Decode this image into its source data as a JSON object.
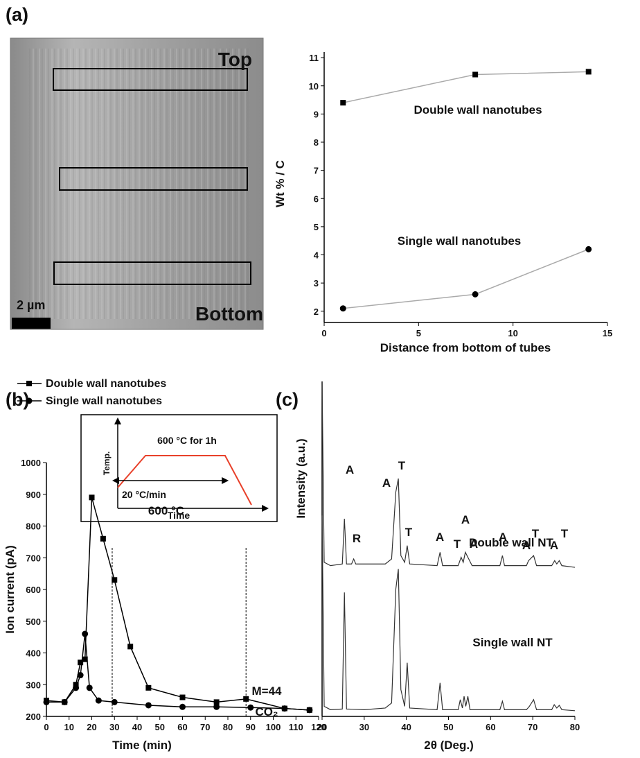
{
  "image": {
    "panel": "(a)",
    "top": "Top",
    "bottom": "Bottom",
    "scale": "2 µm"
  },
  "chart_data": [
    {
      "type": "line",
      "y_label": "Wt % / C",
      "x_label": "Distance from bottom of tubes",
      "xlim": [
        0,
        15
      ],
      "xticks": [
        0,
        5,
        10,
        15
      ],
      "ylim": [
        1.6,
        11.2
      ],
      "yticks": [
        2,
        3,
        4,
        5,
        6,
        7,
        8,
        9,
        10,
        11
      ],
      "series": [
        {
          "name": "Double wall nanotubes",
          "color": "#000000",
          "line_color": "#aaaaaa",
          "marker": "square",
          "x": [
            1,
            8,
            14
          ],
          "values": [
            9.4,
            10.4,
            10.5
          ]
        },
        {
          "name": "Single wall nanotubes",
          "color": "#000000",
          "line_color": "#aaaaaa",
          "marker": "circle",
          "x": [
            1,
            8,
            14
          ],
          "values": [
            2.1,
            2.6,
            4.2
          ]
        }
      ]
    },
    {
      "type": "line",
      "panel": "(b)",
      "y_label": "Ion current (pA)",
      "x_label": "Time (min)",
      "legend": "upper left",
      "xlim": [
        0,
        120
      ],
      "xticks": [
        0,
        10,
        20,
        30,
        40,
        50,
        60,
        70,
        80,
        90,
        100,
        110,
        120
      ],
      "ylim": [
        200,
        1000
      ],
      "yticks": [
        200,
        300,
        400,
        500,
        600,
        700,
        800,
        900,
        1000
      ],
      "vlines": [
        29,
        88
      ],
      "annotations": [
        "600 °C",
        "M=44",
        "CO₂"
      ],
      "inset": {
        "title": "600 °C for 1h",
        "y_label": "Temp.",
        "rate": "20 °C/min",
        "x_label": "Time"
      },
      "series": [
        {
          "name": "Double wall nanotubes",
          "color": "#000000",
          "marker": "square",
          "x": [
            0,
            8,
            13,
            15,
            17,
            20,
            25,
            30,
            37,
            45,
            60,
            75,
            88,
            105,
            116
          ],
          "values": [
            250,
            245,
            300,
            370,
            380,
            890,
            760,
            630,
            420,
            290,
            260,
            245,
            255,
            225,
            220
          ]
        },
        {
          "name": "Single wall nanotubes",
          "color": "#000000",
          "marker": "circle",
          "x": [
            0,
            8,
            13,
            15,
            17,
            19,
            23,
            30,
            45,
            60,
            75,
            90,
            105,
            116
          ],
          "values": [
            245,
            245,
            290,
            330,
            460,
            290,
            250,
            245,
            235,
            230,
            230,
            228,
            225,
            220
          ]
        }
      ]
    },
    {
      "type": "line",
      "panel": "(c)",
      "y_label": "Intensity (a.u.)",
      "x_label": "2θ (Deg.)",
      "xlim": [
        20,
        80
      ],
      "xticks": [
        20,
        30,
        40,
        50,
        60,
        70,
        80
      ],
      "ylim": [
        0,
        100
      ],
      "peak_labels": [
        "A",
        "R",
        "A",
        "T",
        "T",
        "A",
        "T",
        "A",
        "A",
        "A",
        "A",
        "T",
        "A",
        "T"
      ],
      "series": [
        {
          "name": "Double wall NT",
          "color": "#333333",
          "x": [
            20,
            20.5,
            22,
            24.8,
            25.3,
            25.8,
            27,
            27.5,
            28,
            35,
            36.5,
            37.5,
            38.1,
            38.7,
            39.6,
            40.2,
            40.8,
            47.3,
            48,
            48.6,
            52.3,
            53,
            53.5,
            54,
            55,
            55.6,
            62.2,
            62.8,
            63.3,
            68.5,
            69,
            70.2,
            70.9,
            74.5,
            75.2,
            75.7,
            76.3,
            76.9,
            80
          ],
          "values": [
            100,
            46,
            45,
            45.5,
            59,
            45.5,
            45.5,
            47,
            45.5,
            45.5,
            47,
            67,
            71,
            48,
            46,
            51,
            45.5,
            45,
            49,
            45,
            45,
            47.5,
            46,
            49,
            46.5,
            45,
            45,
            48,
            45,
            45,
            46.5,
            48,
            45,
            45,
            46.5,
            45.5,
            46.5,
            45,
            44.5
          ]
        },
        {
          "name": "Single wall NT",
          "color": "#333333",
          "x": [
            20,
            20.5,
            22,
            24.8,
            25.3,
            25.8,
            30,
            35,
            36.5,
            37.5,
            38.1,
            38.7,
            39.6,
            40.2,
            40.8,
            47.3,
            48,
            48.6,
            52.3,
            52.8,
            53.3,
            53.7,
            54.1,
            54.6,
            55.1,
            55.6,
            62.2,
            62.8,
            63.3,
            68.5,
            69.2,
            70.2,
            70.9,
            74.5,
            75.1,
            75.7,
            76.3,
            76.9,
            80
          ],
          "values": [
            60,
            3,
            2,
            2.2,
            37,
            2.2,
            2,
            2.5,
            4,
            38,
            44,
            8,
            3,
            16,
            2.5,
            2,
            10,
            2,
            2,
            5,
            2.5,
            6,
            3,
            6,
            2,
            2,
            2,
            4.5,
            2,
            2,
            3,
            5,
            2,
            2,
            3.5,
            2.5,
            3.3,
            2,
            1.7
          ]
        }
      ]
    }
  ]
}
